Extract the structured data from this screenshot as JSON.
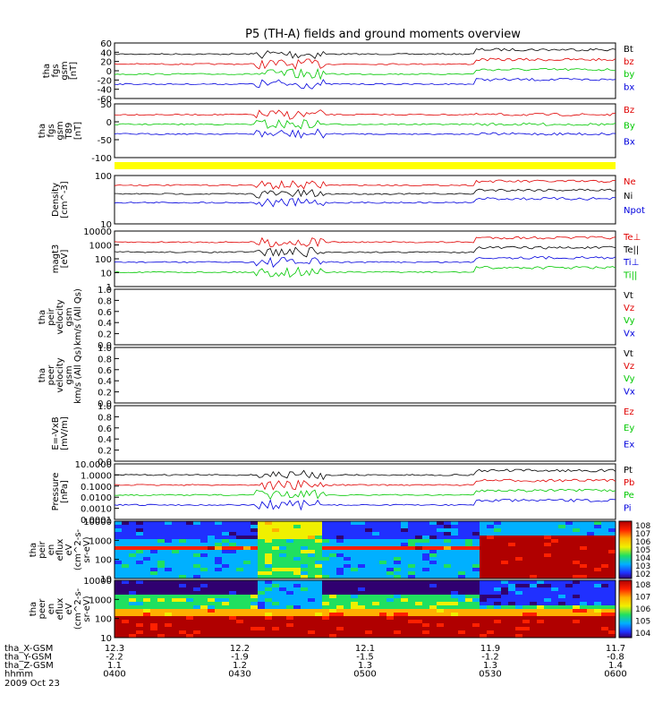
{
  "title": "P5 (TH-A) fields and ground moments overview",
  "date_label": "2009 Oct 23",
  "orbit_rows": [
    {
      "label": "tha_X-GSM",
      "values": [
        "12.3",
        "12.2",
        "12.1",
        "11.9",
        "11.7"
      ]
    },
    {
      "label": "tha_Y-GSM",
      "values": [
        "-2.2",
        "-1.9",
        "-1.5",
        "-1.2",
        "-0.8"
      ]
    },
    {
      "label": "tha_Z-GSM",
      "values": [
        "1.1",
        "1.2",
        "1.3",
        "1.3",
        "1.4"
      ]
    },
    {
      "label": "hhmm",
      "values": [
        "0400",
        "0430",
        "0500",
        "0530",
        "0600"
      ]
    }
  ],
  "colors": {
    "black": "#000000",
    "red": "#e00000",
    "green": "#00c800",
    "blue": "#0000dd",
    "yellow": "#ffff00"
  },
  "colorbar_1": [
    "10^8",
    "10^7",
    "10^6",
    "10^5",
    "10^4",
    "10^3",
    "10^2"
  ],
  "colorbar_2": [
    "10^8",
    "10^7",
    "10^6",
    "10^5",
    "10^4"
  ],
  "chart_data": [
    {
      "type": "line",
      "ylabel": [
        "tha",
        "fgs",
        "gsm",
        "[nT]"
      ],
      "yticks": [
        "60",
        "40",
        "20",
        "0",
        "-20",
        "-40",
        "-60"
      ],
      "legend": [
        {
          "name": "Bt",
          "color": "black"
        },
        {
          "name": "bz",
          "color": "red"
        },
        {
          "name": "by",
          "color": "green"
        },
        {
          "name": "bx",
          "color": "blue"
        }
      ]
    },
    {
      "type": "line",
      "ylabel": [
        "tha",
        "fgs",
        "gsm",
        "T89",
        "[nT]"
      ],
      "yticks": [
        "50",
        "0",
        "-50",
        "-100"
      ],
      "legend": [
        {
          "name": "Bz",
          "color": "red"
        },
        {
          "name": "By",
          "color": "green"
        },
        {
          "name": "Bx",
          "color": "blue"
        }
      ]
    },
    {
      "type": "line",
      "ylabel": [
        "Density",
        "[cm^-3]"
      ],
      "yticks": [
        "100",
        "10"
      ],
      "legend": [
        {
          "name": "Ne",
          "color": "red"
        },
        {
          "name": "Ni",
          "color": "black"
        },
        {
          "name": "Npot",
          "color": "blue"
        }
      ]
    },
    {
      "type": "line",
      "ylabel": [
        "magt3",
        "[eV]"
      ],
      "yticks": [
        "10000",
        "1000",
        "100",
        "10",
        "1"
      ],
      "legend": [
        {
          "name": "Te⊥",
          "color": "red"
        },
        {
          "name": "Te||",
          "color": "black"
        },
        {
          "name": "Ti⊥",
          "color": "blue"
        },
        {
          "name": "Ti||",
          "color": "green"
        }
      ]
    },
    {
      "type": "line",
      "ylabel": [
        "tha",
        "peir",
        "velocity",
        "gsm",
        "km/s (All Qs)"
      ],
      "yticks": [
        "1.0",
        "0.8",
        "0.6",
        "0.4",
        "0.2",
        "0.0"
      ],
      "legend": [
        {
          "name": "Vt",
          "color": "black"
        },
        {
          "name": "Vz",
          "color": "red"
        },
        {
          "name": "Vy",
          "color": "green"
        },
        {
          "name": "Vx",
          "color": "blue"
        }
      ]
    },
    {
      "type": "line",
      "ylabel": [
        "tha",
        "peer",
        "velocity",
        "gsm",
        "km/s (All Qs)"
      ],
      "yticks": [
        "1.0",
        "0.8",
        "0.6",
        "0.4",
        "0.2",
        "0.0"
      ],
      "legend": [
        {
          "name": "Vt",
          "color": "black"
        },
        {
          "name": "Vz",
          "color": "red"
        },
        {
          "name": "Vy",
          "color": "green"
        },
        {
          "name": "Vx",
          "color": "blue"
        }
      ]
    },
    {
      "type": "line",
      "ylabel": [
        "E=-VxB",
        "[mV/m]"
      ],
      "yticks": [
        "1.0",
        "0.8",
        "0.6",
        "0.4",
        "0.2",
        "0.0"
      ],
      "legend": [
        {
          "name": "Ez",
          "color": "red"
        },
        {
          "name": "Ey",
          "color": "green"
        },
        {
          "name": "Ex",
          "color": "blue"
        }
      ]
    },
    {
      "type": "line",
      "ylabel": [
        "Pressure",
        "[nPa]"
      ],
      "yticks": [
        "10.0000",
        "1.0000",
        "0.1000",
        "0.0100",
        "0.0010",
        "0.0001"
      ],
      "legend": [
        {
          "name": "Pt",
          "color": "black"
        },
        {
          "name": "Pb",
          "color": "red"
        },
        {
          "name": "Pe",
          "color": "green"
        },
        {
          "name": "Pi",
          "color": "blue"
        }
      ]
    },
    {
      "type": "heatmap",
      "ylabel": [
        "tha",
        "peir",
        "en",
        "eflux",
        "eV",
        "(cm^2-s-",
        "sr-eV)"
      ],
      "yticks": [
        "10000",
        "1000",
        "100",
        "10"
      ]
    },
    {
      "type": "heatmap",
      "ylabel": [
        "tha",
        "peer",
        "en",
        "eflux",
        "eV",
        "(cm^2-s-",
        "sr-eV)"
      ],
      "yticks": [
        "10000",
        "1000",
        "100",
        "10"
      ]
    }
  ]
}
